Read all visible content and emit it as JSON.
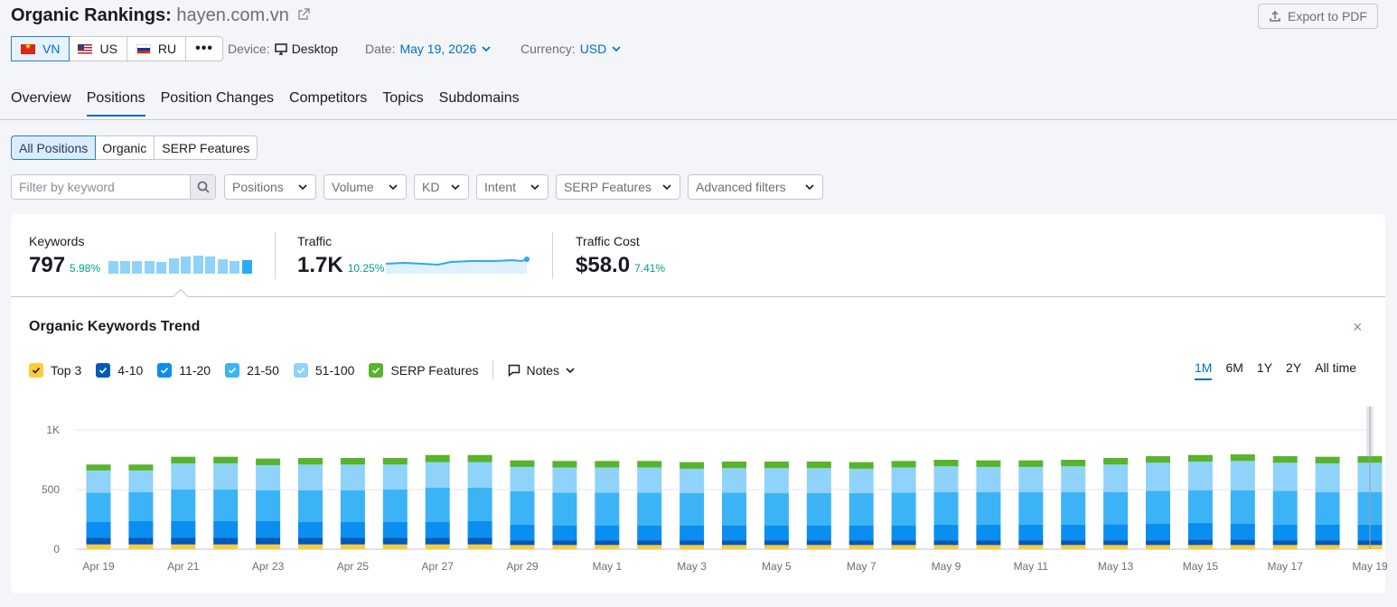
{
  "header": {
    "title_prefix": "Organic Rankings:",
    "domain": "hayen.com.vn",
    "export_label": "Export to PDF"
  },
  "databases": [
    {
      "code": "VN",
      "flag": "flag-vn",
      "active": true
    },
    {
      "code": "US",
      "flag": "flag-us",
      "active": false
    },
    {
      "code": "RU",
      "flag": "flag-ru",
      "active": false
    }
  ],
  "more_label": "•••",
  "meta": {
    "device_label": "Device:",
    "device_value": "Desktop",
    "date_label": "Date:",
    "date_value": "May 19, 2026",
    "currency_label": "Currency:",
    "currency_value": "USD"
  },
  "tabs": [
    "Overview",
    "Positions",
    "Position Changes",
    "Competitors",
    "Topics",
    "Subdomains"
  ],
  "active_tab": "Positions",
  "position_types": [
    "All Positions",
    "Organic",
    "SERP Features"
  ],
  "search": {
    "placeholder": "Filter by keyword"
  },
  "filters": [
    "Positions",
    "Volume",
    "KD",
    "Intent",
    "SERP Features",
    "Advanced filters"
  ],
  "kpis": {
    "keywords": {
      "label": "Keywords",
      "value": "797",
      "delta": "5.98%"
    },
    "traffic": {
      "label": "Traffic",
      "value": "1.7K",
      "delta": "10.25%"
    },
    "traffic_cost": {
      "label": "Traffic Cost",
      "value": "$58.0",
      "delta": "7.41%"
    }
  },
  "trend": {
    "title": "Organic Keywords Trend",
    "close": "×",
    "legend": [
      {
        "label": "Top 3",
        "color": "#ffcb39"
      },
      {
        "label": "4-10",
        "color": "#005ab8"
      },
      {
        "label": "11-20",
        "color": "#0a8ef0"
      },
      {
        "label": "21-50",
        "color": "#3cb3f7"
      },
      {
        "label": "51-100",
        "color": "#8fd3fb"
      },
      {
        "label": "SERP Features",
        "color": "#59b32b"
      }
    ],
    "notes_label": "Notes",
    "ranges": [
      "1M",
      "6M",
      "1Y",
      "2Y",
      "All time"
    ],
    "active_range": "1M"
  },
  "chart_data": {
    "type": "bar",
    "stacked": true,
    "title": "",
    "xlabel": "",
    "ylabel": "",
    "ylim": [
      0,
      1000
    ],
    "yticks": [
      "0",
      "500",
      "1K"
    ],
    "grid": true,
    "categories": [
      "Apr 19",
      "Apr 20",
      "Apr 21",
      "Apr 22",
      "Apr 23",
      "Apr 24",
      "Apr 25",
      "Apr 26",
      "Apr 27",
      "Apr 28",
      "Apr 29",
      "Apr 30",
      "May 1",
      "May 2",
      "May 3",
      "May 4",
      "May 5",
      "May 6",
      "May 7",
      "May 8",
      "May 9",
      "May 10",
      "May 11",
      "May 12",
      "May 13",
      "May 14",
      "May 15",
      "May 16",
      "May 17",
      "May 18",
      "May 19"
    ],
    "tick_labels": [
      "Apr 19",
      "Apr 21",
      "Apr 23",
      "Apr 25",
      "Apr 27",
      "Apr 29",
      "May 1",
      "May 3",
      "May 5",
      "May 7",
      "May 9",
      "May 11",
      "May 13",
      "May 15",
      "May 17",
      "May 19"
    ],
    "series": [
      {
        "name": "Top 3",
        "color": "#ffcb39",
        "values": [
          40,
          40,
          40,
          40,
          40,
          40,
          40,
          40,
          40,
          40,
          35,
          35,
          35,
          35,
          35,
          35,
          35,
          35,
          35,
          35,
          35,
          35,
          35,
          35,
          35,
          35,
          35,
          35,
          35,
          35,
          35
        ]
      },
      {
        "name": "4-10",
        "color": "#005ab8",
        "values": [
          55,
          55,
          55,
          55,
          55,
          55,
          55,
          55,
          55,
          55,
          40,
          40,
          40,
          40,
          40,
          40,
          40,
          40,
          40,
          40,
          40,
          40,
          40,
          40,
          40,
          40,
          45,
          45,
          40,
          40,
          40
        ]
      },
      {
        "name": "11-20",
        "color": "#0a8ef0",
        "values": [
          135,
          140,
          140,
          140,
          140,
          135,
          135,
          135,
          135,
          140,
          130,
          125,
          125,
          125,
          125,
          125,
          125,
          125,
          125,
          125,
          130,
          130,
          130,
          130,
          135,
          140,
          140,
          135,
          130,
          130,
          130
        ]
      },
      {
        "name": "21-50",
        "color": "#3cb3f7",
        "values": [
          245,
          245,
          265,
          265,
          260,
          265,
          265,
          270,
          285,
          280,
          280,
          275,
          275,
          275,
          270,
          275,
          270,
          270,
          270,
          275,
          275,
          275,
          275,
          275,
          270,
          275,
          275,
          280,
          285,
          275,
          275
        ]
      },
      {
        "name": "51-100",
        "color": "#8fd3fb",
        "values": [
          185,
          180,
          220,
          220,
          210,
          215,
          215,
          210,
          215,
          215,
          205,
          210,
          210,
          210,
          205,
          205,
          210,
          210,
          205,
          210,
          215,
          210,
          210,
          215,
          230,
          235,
          240,
          245,
          235,
          240,
          245
        ]
      },
      {
        "name": "SERP Features",
        "color": "#59b32b",
        "values": [
          50,
          50,
          55,
          55,
          55,
          55,
          55,
          55,
          60,
          60,
          55,
          55,
          55,
          55,
          55,
          55,
          55,
          55,
          55,
          55,
          55,
          55,
          55,
          55,
          55,
          55,
          55,
          55,
          55,
          55,
          55
        ]
      }
    ]
  },
  "colors": {
    "accent": "#006dca",
    "positive": "#009f81",
    "sparkline": "#2aa9f5"
  }
}
